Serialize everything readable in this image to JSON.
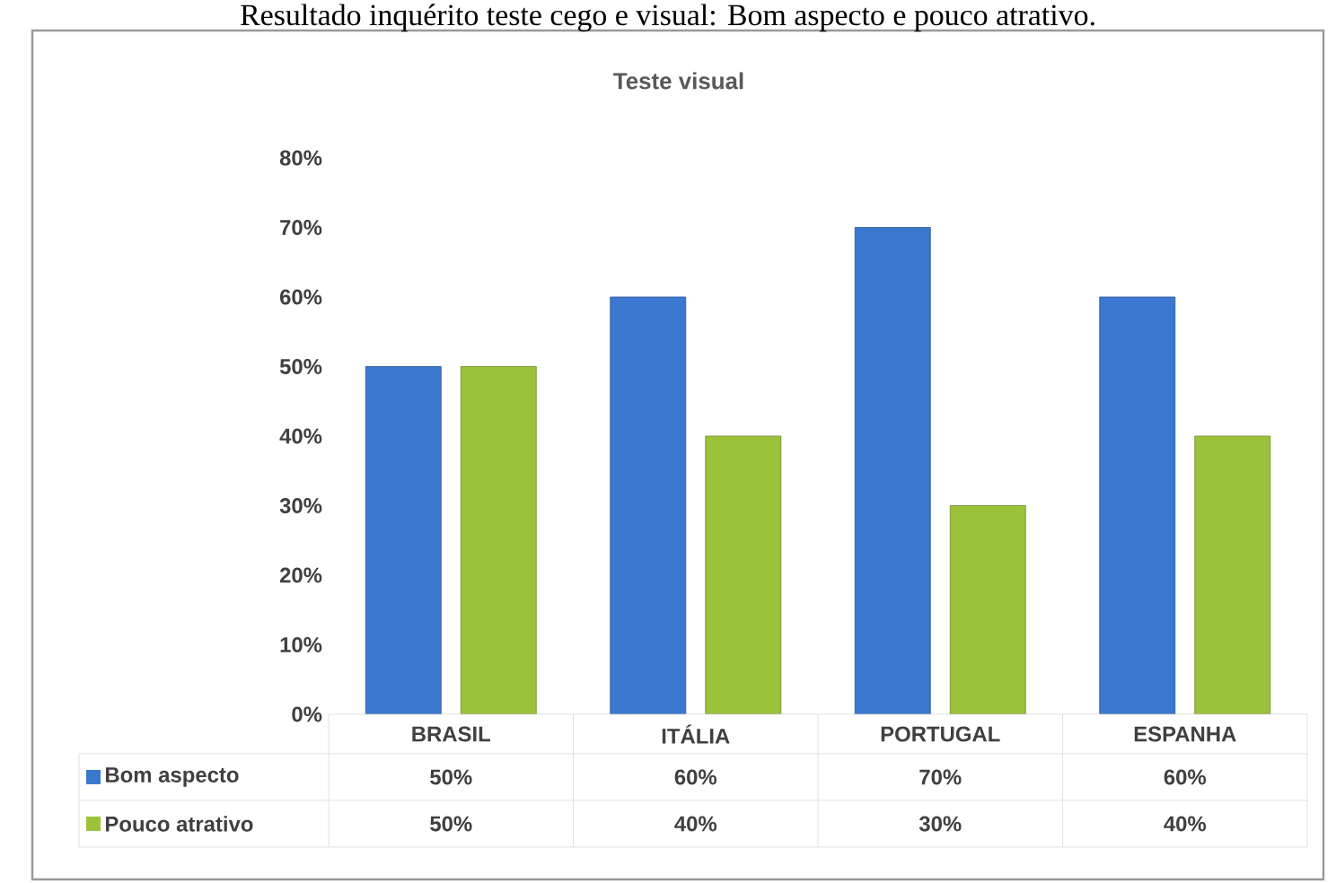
{
  "chart_data": {
    "type": "bar",
    "title": "Teste visual",
    "annotations": [
      "Resultado inquérito teste cego e visual: Bom aspecto e pouco atrativo."
    ],
    "categories": [
      "BRASIL",
      "ITÁLIA",
      "PORTUGAL",
      "ESPANHA"
    ],
    "series": [
      {
        "name": "Bom aspecto",
        "color": "#3b78d0",
        "values": [
          50,
          60,
          70,
          60
        ],
        "value_labels": [
          "50%",
          "60%",
          "70%",
          "60%"
        ]
      },
      {
        "name": "Pouco atrativo",
        "color": "#9cc23a",
        "values": [
          50,
          40,
          30,
          40
        ],
        "value_labels": [
          "50%",
          "40%",
          "30%",
          "40%"
        ]
      }
    ],
    "ylim": [
      0,
      80
    ],
    "yticks": [
      {
        "value": 0,
        "label": "0%"
      },
      {
        "value": 10,
        "label": "10%"
      },
      {
        "value": 20,
        "label": "20%"
      },
      {
        "value": 30,
        "label": "30%"
      },
      {
        "value": 40,
        "label": "40%"
      },
      {
        "value": 50,
        "label": "50%"
      },
      {
        "value": 60,
        "label": "60%"
      },
      {
        "value": 70,
        "label": "70%"
      },
      {
        "value": 80,
        "label": "80%"
      }
    ],
    "grid": false,
    "legend": "bottom"
  }
}
